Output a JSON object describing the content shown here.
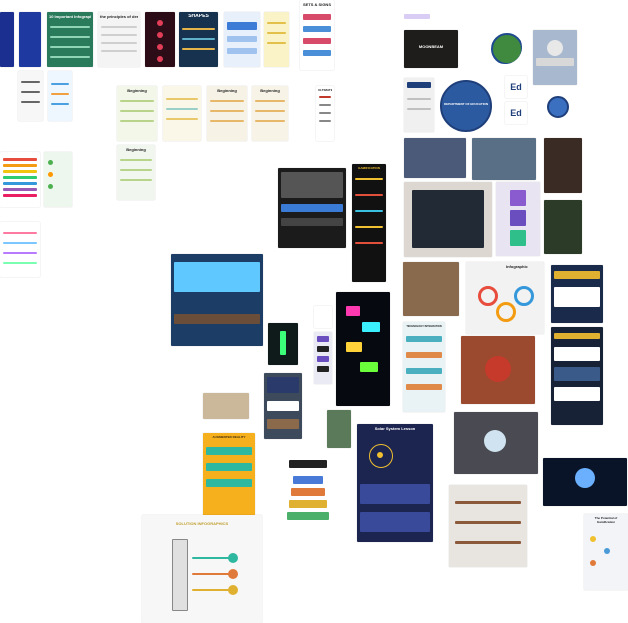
{
  "canvas": {
    "background": "#ffffff"
  },
  "tag": {
    "label": ""
  },
  "cards": [
    {
      "name": "blue-pattern-a",
      "bg": "#1a2f8f",
      "title": ""
    },
    {
      "name": "blue-pattern-b",
      "bg": "#1e3aa0",
      "title": ""
    },
    {
      "name": "green-infographic",
      "bg": "#2a7a5c",
      "title": "10 Important Infographic"
    },
    {
      "name": "principles-of-design",
      "bg": "#f4f4f4",
      "title": "the principles of design"
    },
    {
      "name": "red-timeline",
      "bg": "#2b0c17",
      "title": ""
    },
    {
      "name": "shapes-poster",
      "bg": "#16324f",
      "title": "SHAPES"
    },
    {
      "name": "blue-slides",
      "bg": "#e8f0fb",
      "title": ""
    },
    {
      "name": "yellow-guide",
      "bg": "#fbf3c8",
      "title": ""
    },
    {
      "name": "sets-and-signs",
      "bg": "#ffffff",
      "title": "SETS & SIGNS"
    },
    {
      "name": "small-chart-left",
      "bg": "#f7f7f7",
      "title": ""
    },
    {
      "name": "small-chart-right",
      "bg": "#eef6ff",
      "title": ""
    },
    {
      "name": "beginning-list-1",
      "bg": "#f3f7ea",
      "title": "Beginning"
    },
    {
      "name": "beginning-list-2",
      "bg": "#fbf7e8",
      "title": ""
    },
    {
      "name": "beginning-list-3",
      "bg": "#f6f2e6",
      "title": "Beginning"
    },
    {
      "name": "beginning-list-4",
      "bg": "#f7f3e7",
      "title": "Beginning"
    },
    {
      "name": "ultimate-list",
      "bg": "#ffffff",
      "title": "ULTIMATE"
    },
    {
      "name": "color-bars",
      "bg": "#ffffff",
      "title": ""
    },
    {
      "name": "green-check",
      "bg": "#eef7ee",
      "title": ""
    },
    {
      "name": "beginning-list-5",
      "bg": "#f1f6ee",
      "title": "Beginning"
    },
    {
      "name": "small-colors",
      "bg": "#ffffff",
      "title": ""
    },
    {
      "name": "book-moonbeam",
      "bg": "#1f1d1b",
      "title": "MOONBEAM"
    },
    {
      "name": "seal-green",
      "bg": "#ffffff",
      "title": ""
    },
    {
      "name": "capitol",
      "bg": "#a8b9cf",
      "title": ""
    },
    {
      "name": "dept-site",
      "bg": "#f0f0f0",
      "title": ""
    },
    {
      "name": "dept-seal-large",
      "bg": "#ffffff",
      "title": "DEPARTMENT OF EDUCATION"
    },
    {
      "name": "ed-logo-top",
      "bg": "#ffffff",
      "title": "Ed"
    },
    {
      "name": "ed-logo-bottom",
      "bg": "#ffffff",
      "title": "Ed"
    },
    {
      "name": "seal-small",
      "bg": "#ffffff",
      "title": ""
    },
    {
      "name": "office-room",
      "bg": "#4a5a78",
      "title": ""
    },
    {
      "name": "city-plaza",
      "bg": "#596f85",
      "title": ""
    },
    {
      "name": "lounge",
      "bg": "#3a2c24",
      "title": ""
    },
    {
      "name": "calendar-screen",
      "bg": "#dcd7d0",
      "title": ""
    },
    {
      "name": "purple-gradients",
      "bg": "#e9e4f2",
      "title": ""
    },
    {
      "name": "greenhouse",
      "bg": "#2c3a28",
      "title": ""
    },
    {
      "name": "obama-site",
      "bg": "#1b1b1b",
      "title": ""
    },
    {
      "name": "gamification-poster",
      "bg": "#111111",
      "title": "GAMIFICATION"
    },
    {
      "name": "futuristic-classroom",
      "bg": "#1c3d66",
      "title": ""
    },
    {
      "name": "study-desk",
      "bg": "#8a6a4d",
      "title": ""
    },
    {
      "name": "infographic-circles",
      "bg": "#f2f2f2",
      "title": "Infographic"
    },
    {
      "name": "web-mock-right",
      "bg": "#1a2a4a",
      "title": ""
    },
    {
      "name": "hologram",
      "bg": "#0f1a1a",
      "title": ""
    },
    {
      "name": "handwriting-note",
      "bg": "#ffffff",
      "title": ""
    },
    {
      "name": "small-tiles",
      "bg": "#eaeaf4",
      "title": ""
    },
    {
      "name": "neon-puzzle",
      "bg": "#070910",
      "title": ""
    },
    {
      "name": "tech-integration",
      "bg": "#e9f3f6",
      "title": "TECHNOLOGY INTEGRATION"
    },
    {
      "name": "tablet-fruit",
      "bg": "#9b4a2f",
      "title": ""
    },
    {
      "name": "web-mock-dark",
      "bg": "#182236",
      "title": ""
    },
    {
      "name": "tablet-hand",
      "bg": "#cbb89a",
      "title": ""
    },
    {
      "name": "small-thumb",
      "bg": "#3d4a5c",
      "title": ""
    },
    {
      "name": "forest",
      "bg": "#5a7a5a",
      "title": ""
    },
    {
      "name": "augmented-reality",
      "bg": "#f6b01e",
      "title": "AUGMENTED REALITY"
    },
    {
      "name": "solar-system",
      "bg": "#1c2450",
      "title": "Solar System Lesson"
    },
    {
      "name": "education-stack",
      "bg": "#ffffff",
      "title": ""
    },
    {
      "name": "globe-hands",
      "bg": "#4a4a52",
      "title": ""
    },
    {
      "name": "globe-night",
      "bg": "#0a1428",
      "title": ""
    },
    {
      "name": "bookshelf",
      "bg": "#e8e4df",
      "title": ""
    },
    {
      "name": "gamification-light",
      "bg": "#f2f4f8",
      "title": "The Potential of Gamification"
    },
    {
      "name": "pencil-infographic",
      "bg": "#f7f7f7",
      "title": "SOLUTION INFOGRAPHICS"
    }
  ]
}
